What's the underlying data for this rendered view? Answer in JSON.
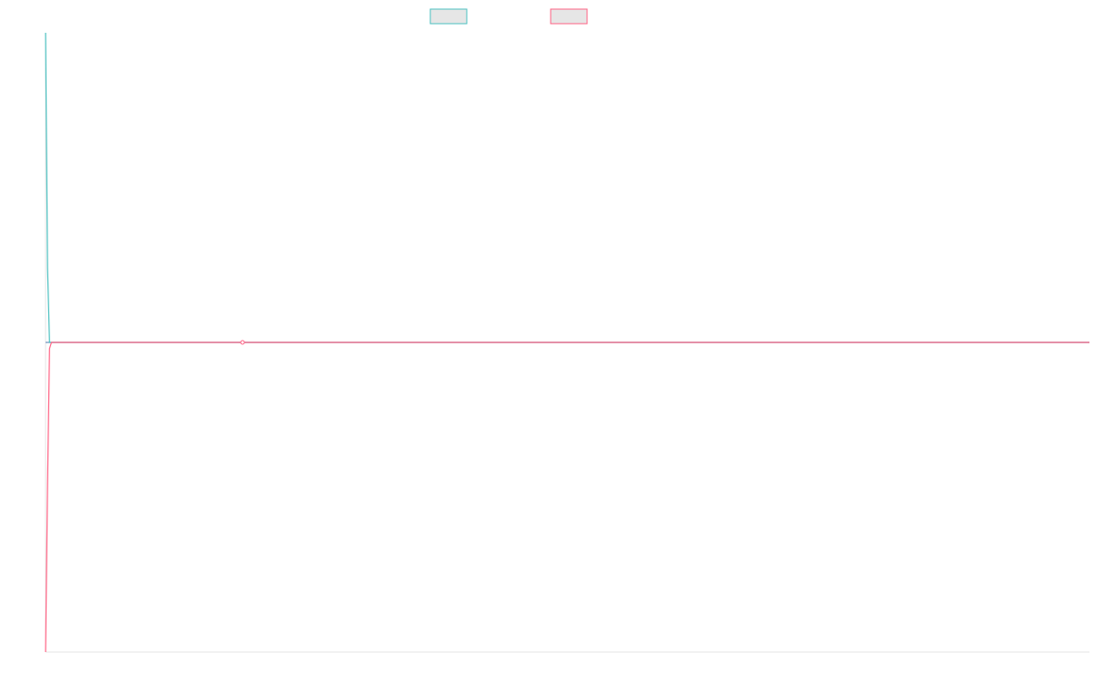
{
  "chart_data": {
    "type": "line",
    "x": [
      0,
      1,
      2,
      3,
      4,
      5,
      6,
      7,
      8,
      9,
      10,
      100,
      200
    ],
    "series": [
      {
        "values": [
          1.0,
          0.62,
          0.5,
          0.5,
          0.5,
          0.5,
          0.5,
          0.5,
          0.5,
          0.5,
          0.5,
          0.5,
          0.5
        ],
        "color": "#4bc0c0",
        "legend_swatch_fill": "#e6e6e6"
      },
      {
        "values": [
          0.0,
          0.27,
          0.49,
          0.5,
          0.5,
          0.5,
          0.5,
          0.5,
          0.5,
          0.5,
          0.5,
          0.5,
          0.5
        ],
        "color": "#ff6384",
        "legend_swatch_fill": "#e6e6e6"
      },
      {
        "values": [
          0.5,
          0.5,
          0.5,
          0.5,
          0.5,
          0.5,
          0.5,
          0.5,
          0.5,
          0.5,
          0.5,
          0.5,
          0.5
        ],
        "color": "#6f93bf"
      }
    ],
    "xlim": [
      0,
      530
    ],
    "ylim": [
      0,
      1
    ],
    "grid": false,
    "legend": "top-center",
    "marker_at": {
      "x": 100,
      "y": 0.5,
      "color": "#ff6384"
    },
    "axis_color": "#e5e5e5"
  }
}
